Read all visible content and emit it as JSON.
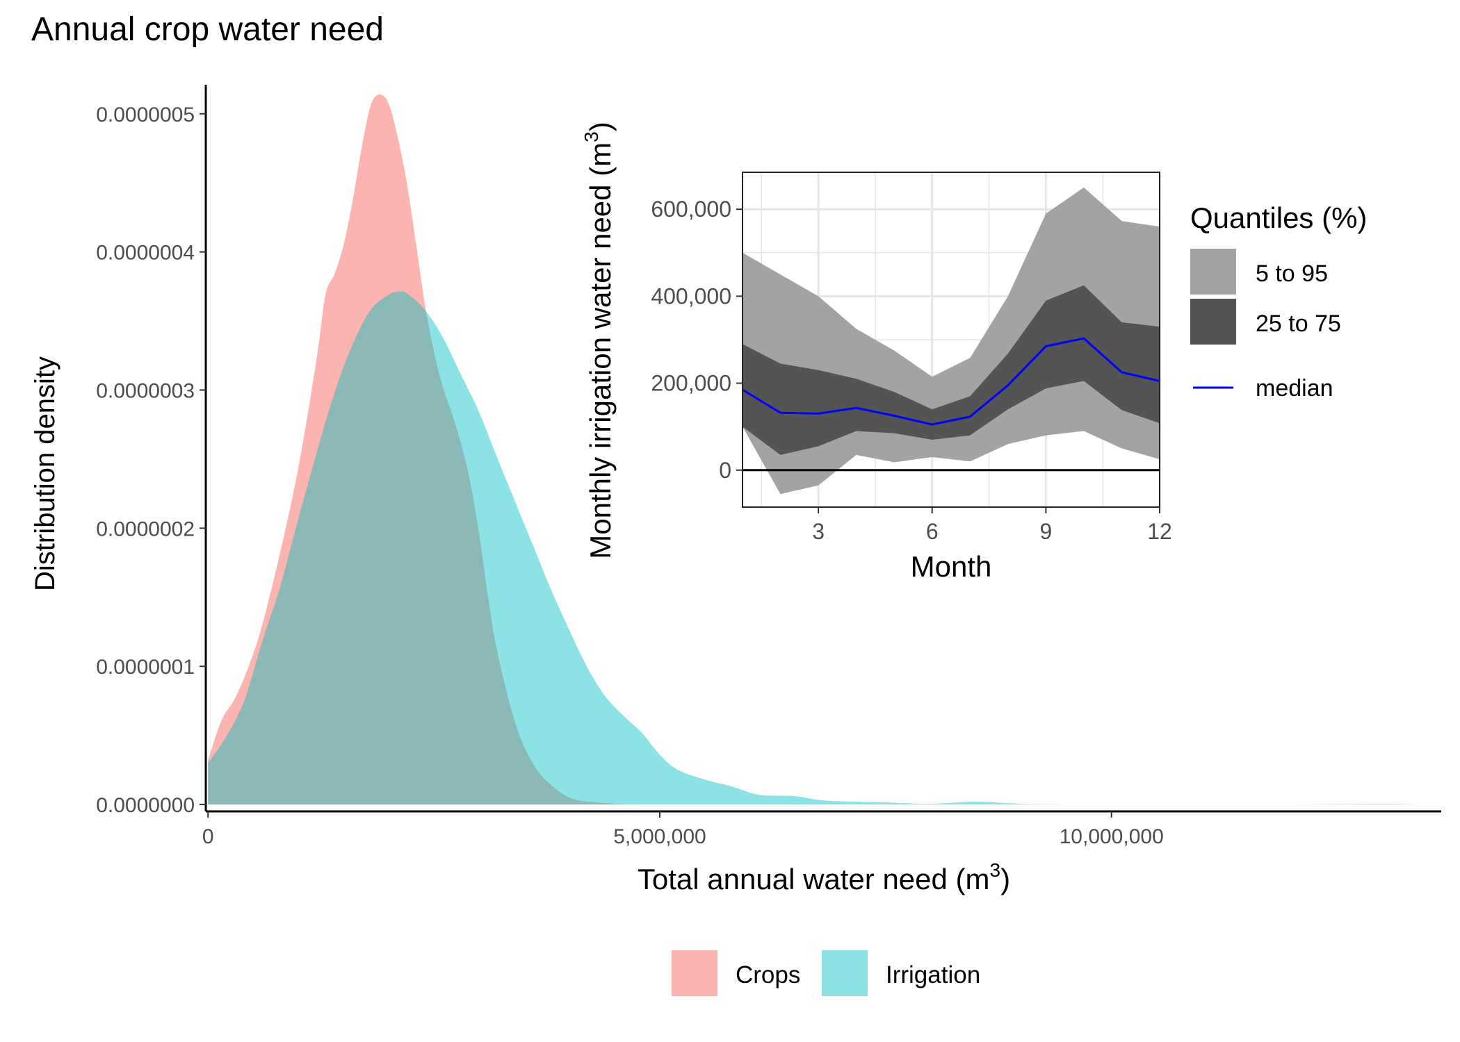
{
  "chart_data": [
    {
      "type": "area",
      "title": "Annual crop water need",
      "xlabel": "Total annual water need",
      "xlabel_unit": "(m3)",
      "ylabel": "Distribution density",
      "xlim": [
        -25000,
        13650000
      ],
      "ylim": [
        -5e-09,
        5.21e-07
      ],
      "x_ticks": [
        0,
        5000000,
        10000000
      ],
      "x_tick_labels": [
        "0",
        "5,000,000",
        "10,000,000"
      ],
      "y_ticks": [
        0,
        1e-07,
        2e-07,
        3e-07,
        4e-07,
        5e-07
      ],
      "y_tick_labels": [
        "0.0000000",
        "0.0000001",
        "0.0000002",
        "0.0000003",
        "0.0000004",
        "0.0000005"
      ],
      "grid": false,
      "legend_position": "bottom",
      "colors": {
        "Crops": "#F8766D",
        "Irrigation": "#00BFC4"
      },
      "fill_opacity": 0.55,
      "series": [
        {
          "name": "Crops",
          "x": [
            0,
            150000,
            300000,
            450000,
            600000,
            800000,
            1000000,
            1200000,
            1300000,
            1400000,
            1500000,
            1600000,
            1700000,
            1800000,
            1900000,
            2000000,
            2100000,
            2200000,
            2300000,
            2400000,
            2500000,
            2600000,
            2700000,
            2800000,
            2900000,
            3000000,
            3100000,
            3200000,
            3400000,
            3600000,
            3800000,
            4000000,
            4200000,
            4400000,
            4600000
          ],
          "values": [
            3.2e-08,
            6.1e-08,
            7.7e-08,
            1e-07,
            1.3e-07,
            1.83e-07,
            2.44e-07,
            3.22e-07,
            3.69e-07,
            3.84e-07,
            4.05e-07,
            4.37e-07,
            4.75e-07,
            5.06e-07,
            5.14e-07,
            5.07e-07,
            4.83e-07,
            4.5e-07,
            4.07e-07,
            3.62e-07,
            3.28e-07,
            3.02e-07,
            2.83e-07,
            2.61e-07,
            2.34e-07,
            1.96e-07,
            1.5e-07,
            1.11e-07,
            5.9e-08,
            2.9e-08,
            1.4e-08,
            5e-09,
            2e-09,
            1e-09,
            0
          ]
        },
        {
          "name": "Irrigation",
          "x": [
            0,
            200000,
            400000,
            600000,
            800000,
            1000000,
            1200000,
            1400000,
            1600000,
            1800000,
            2000000,
            2100000,
            2200000,
            2400000,
            2600000,
            2800000,
            3000000,
            3200000,
            3400000,
            3600000,
            3800000,
            4000000,
            4200000,
            4400000,
            4600000,
            4800000,
            5000000,
            5200000,
            5500000,
            5800000,
            6100000,
            6500000,
            6800000,
            7200000,
            7500000,
            8000000,
            8500000,
            9000000,
            9500000,
            10000000,
            11000000,
            12000000,
            13000000,
            13400000
          ],
          "values": [
            3e-08,
            4.9e-08,
            7.5e-08,
            1.18e-07,
            1.58e-07,
            2.07e-07,
            2.54e-07,
            2.98e-07,
            3.33e-07,
            3.58e-07,
            3.69e-07,
            3.71e-07,
            3.7e-07,
            3.58e-07,
            3.38e-07,
            3.11e-07,
            2.84e-07,
            2.51e-07,
            2.19e-07,
            1.87e-07,
            1.55e-07,
            1.26e-07,
            9.9e-08,
            7.8e-08,
            6.4e-08,
            5.2e-08,
            3.6e-08,
            2.5e-08,
            1.8e-08,
            1.3e-08,
            7e-09,
            6e-09,
            3e-09,
            2e-09,
            1.5e-09,
            5e-10,
            2e-09,
            5e-10,
            0,
            0,
            0,
            0,
            5e-10,
            0
          ]
        }
      ]
    },
    {
      "type": "area",
      "title": "",
      "xlabel": "Month",
      "ylabel": "Monthly irrigation water need",
      "ylabel_unit": "(m3)",
      "xlim": [
        1,
        12
      ],
      "ylim": [
        -85000,
        685000
      ],
      "x_ticks": [
        3,
        6,
        9,
        12
      ],
      "x_tick_labels": [
        "3",
        "6",
        "9",
        "12"
      ],
      "y_ticks": [
        0,
        200000,
        400000,
        600000
      ],
      "y_tick_labels": [
        "0",
        "200,000",
        "400,000",
        "600,000"
      ],
      "grid": true,
      "legend_position": "right",
      "legend_title": "Quantiles (%)",
      "colors": {
        "5 to 95": "#A3A3A3",
        "25 to 75": "#545454",
        "median": "#0000FF",
        "zero_line": "#000000"
      },
      "x": [
        1,
        2,
        3,
        4,
        5,
        6,
        7,
        8,
        9,
        10,
        11,
        12
      ],
      "series": [
        {
          "name": "5 to 95",
          "lower": [
            100000,
            -55000,
            -35000,
            35000,
            18000,
            30000,
            20000,
            60000,
            80000,
            90000,
            50000,
            25000
          ],
          "upper": [
            500000,
            450000,
            400000,
            325000,
            275000,
            215000,
            258000,
            400000,
            590000,
            650000,
            573000,
            560000
          ]
        },
        {
          "name": "25 to 75",
          "lower": [
            100000,
            35000,
            55000,
            90000,
            85000,
            70000,
            80000,
            140000,
            188000,
            205000,
            138000,
            108000
          ],
          "upper": [
            290000,
            245000,
            230000,
            210000,
            180000,
            140000,
            170000,
            268000,
            390000,
            425000,
            340000,
            330000
          ]
        },
        {
          "name": "median",
          "values": [
            185000,
            132000,
            130000,
            143000,
            125000,
            105000,
            123000,
            195000,
            285000,
            303000,
            225000,
            205000
          ]
        }
      ]
    }
  ]
}
